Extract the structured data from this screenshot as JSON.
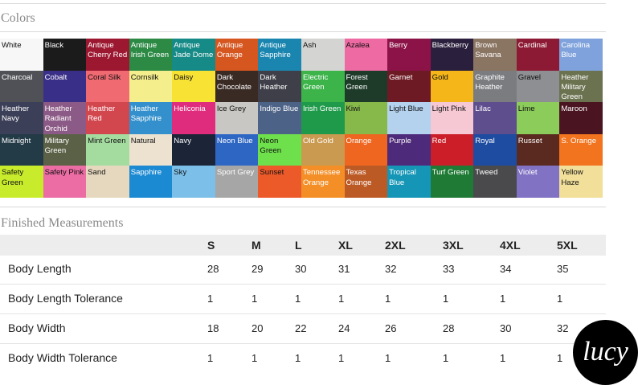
{
  "colors_title": "Colors",
  "swatches": [
    {
      "name": "White",
      "color": "#f7f7f7",
      "dark": false
    },
    {
      "name": "Black",
      "color": "#1b1b1b",
      "dark": true
    },
    {
      "name": "Antique Cherry Red",
      "color": "#9c1730",
      "dark": true
    },
    {
      "name": "Antique Irish Green",
      "color": "#2c8a45",
      "dark": true
    },
    {
      "name": "Antique Jade Dome",
      "color": "#168a86",
      "dark": true
    },
    {
      "name": "Antique Orange",
      "color": "#d65620",
      "dark": true
    },
    {
      "name": "Antique Sapphire",
      "color": "#1a86b0",
      "dark": true
    },
    {
      "name": "Ash",
      "color": "#d4d4d2",
      "dark": false
    },
    {
      "name": "Azalea",
      "color": "#ee6aa2",
      "dark": false
    },
    {
      "name": "Berry",
      "color": "#8c1348",
      "dark": true
    },
    {
      "name": "Blackberry",
      "color": "#2a1f3c",
      "dark": true
    },
    {
      "name": "Brown Savana",
      "color": "#8a7462",
      "dark": true
    },
    {
      "name": "Cardinal",
      "color": "#8d1a34",
      "dark": true
    },
    {
      "name": "Carolina Blue",
      "color": "#7fa2dc",
      "dark": true
    },
    {
      "name": "Charcoal",
      "color": "#4f5156",
      "dark": true
    },
    {
      "name": "Cobalt",
      "color": "#3a2f88",
      "dark": true
    },
    {
      "name": "Coral Silk",
      "color": "#f06a72",
      "dark": false
    },
    {
      "name": "Cornsilk",
      "color": "#f4ee8c",
      "dark": false
    },
    {
      "name": "Daisy",
      "color": "#f8e234",
      "dark": false
    },
    {
      "name": "Dark Chocolate",
      "color": "#3a2a24",
      "dark": true
    },
    {
      "name": "Dark Heather",
      "color": "#3e3f48",
      "dark": true
    },
    {
      "name": "Electric Green",
      "color": "#3cb44a",
      "dark": true
    },
    {
      "name": "Forest Green",
      "color": "#1e3b2a",
      "dark": true
    },
    {
      "name": "Garnet",
      "color": "#6e1a24",
      "dark": true
    },
    {
      "name": "Gold",
      "color": "#f5b619",
      "dark": false
    },
    {
      "name": "Graphite Heather",
      "color": "#7b7c80",
      "dark": true
    },
    {
      "name": "Gravel",
      "color": "#8e8f92",
      "dark": false
    },
    {
      "name": "Heather Military Green",
      "color": "#6b7250",
      "dark": true
    },
    {
      "name": "Heather Navy",
      "color": "#3c3f58",
      "dark": true
    },
    {
      "name": "Heather Radiant Orchid",
      "color": "#8c5a86",
      "dark": true
    },
    {
      "name": "Heather Red",
      "color": "#d2464e",
      "dark": true
    },
    {
      "name": "Heather Sapphire",
      "color": "#3490cc",
      "dark": true
    },
    {
      "name": "Heliconia",
      "color": "#e02c7c",
      "dark": true
    },
    {
      "name": "Ice Grey",
      "color": "#c9c7c3",
      "dark": false
    },
    {
      "name": "Indigo Blue",
      "color": "#4c6287",
      "dark": true
    },
    {
      "name": "Irish Green",
      "color": "#1f9a4a",
      "dark": true
    },
    {
      "name": "Kiwi",
      "color": "#86b84a",
      "dark": false
    },
    {
      "name": "Light Blue",
      "color": "#b4d2ee",
      "dark": false
    },
    {
      "name": "Light Pink",
      "color": "#f6c8d4",
      "dark": false
    },
    {
      "name": "Lilac",
      "color": "#5f4e8e",
      "dark": true
    },
    {
      "name": "Lime",
      "color": "#8ccc5a",
      "dark": false
    },
    {
      "name": "Maroon",
      "color": "#4a1421",
      "dark": true
    },
    {
      "name": "Midnight",
      "color": "#233a47",
      "dark": true
    },
    {
      "name": "Military Green",
      "color": "#5a6146",
      "dark": true
    },
    {
      "name": "Mint Green",
      "color": "#a4dca0",
      "dark": false
    },
    {
      "name": "Natural",
      "color": "#ece2cf",
      "dark": false
    },
    {
      "name": "Navy",
      "color": "#1c2438",
      "dark": true
    },
    {
      "name": "Neon Blue",
      "color": "#2e66c4",
      "dark": true
    },
    {
      "name": "Neon Green",
      "color": "#6ee04c",
      "dark": false
    },
    {
      "name": "Old Gold",
      "color": "#c99a50",
      "dark": true
    },
    {
      "name": "Orange",
      "color": "#ef6620",
      "dark": true
    },
    {
      "name": "Purple",
      "color": "#4e2a7a",
      "dark": true
    },
    {
      "name": "Red",
      "color": "#cc1e28",
      "dark": true
    },
    {
      "name": "Royal",
      "color": "#1e4ca0",
      "dark": true
    },
    {
      "name": "Russet",
      "color": "#5a2a20",
      "dark": true
    },
    {
      "name": "S. Orange",
      "color": "#f3741e",
      "dark": true
    },
    {
      "name": "Safety Green",
      "color": "#c8ec2c",
      "dark": false
    },
    {
      "name": "Safety Pink",
      "color": "#ec6ca4",
      "dark": false
    },
    {
      "name": "Sand",
      "color": "#e6d8be",
      "dark": false
    },
    {
      "name": "Sapphire",
      "color": "#1c8ad2",
      "dark": true
    },
    {
      "name": "Sky",
      "color": "#7cc0ea",
      "dark": false
    },
    {
      "name": "Sport Grey",
      "color": "#a6a6a6",
      "dark": true
    },
    {
      "name": "Sunset",
      "color": "#ec5a2a",
      "dark": false
    },
    {
      "name": "Tennessee Orange",
      "color": "#f48f28",
      "dark": true
    },
    {
      "name": "Texas Orange",
      "color": "#bc5a26",
      "dark": true
    },
    {
      "name": "Tropical Blue",
      "color": "#1696b6",
      "dark": true
    },
    {
      "name": "Turf Green",
      "color": "#1e7a34",
      "dark": true
    },
    {
      "name": "Tweed",
      "color": "#4a4a4c",
      "dark": true
    },
    {
      "name": "Violet",
      "color": "#8272c4",
      "dark": true
    },
    {
      "name": "Yellow Haze",
      "color": "#f1df9a",
      "dark": false
    }
  ],
  "measurements_title": "Finished Measurements",
  "sizes": [
    "S",
    "M",
    "L",
    "XL",
    "2XL",
    "3XL",
    "4XL",
    "5XL"
  ],
  "rows": [
    {
      "label": "Body Length",
      "values": [
        "28",
        "29",
        "30",
        "31",
        "32",
        "33",
        "34",
        "35"
      ]
    },
    {
      "label": "Body Length Tolerance",
      "values": [
        "1",
        "1",
        "1",
        "1",
        "1",
        "1",
        "1",
        "1"
      ]
    },
    {
      "label": "Body Width",
      "values": [
        "18",
        "20",
        "22",
        "24",
        "26",
        "28",
        "30",
        "32"
      ]
    },
    {
      "label": "Body Width Tolerance",
      "values": [
        "1",
        "1",
        "1",
        "1",
        "1",
        "1",
        "1",
        "1"
      ]
    }
  ],
  "logo_text": "lucy"
}
